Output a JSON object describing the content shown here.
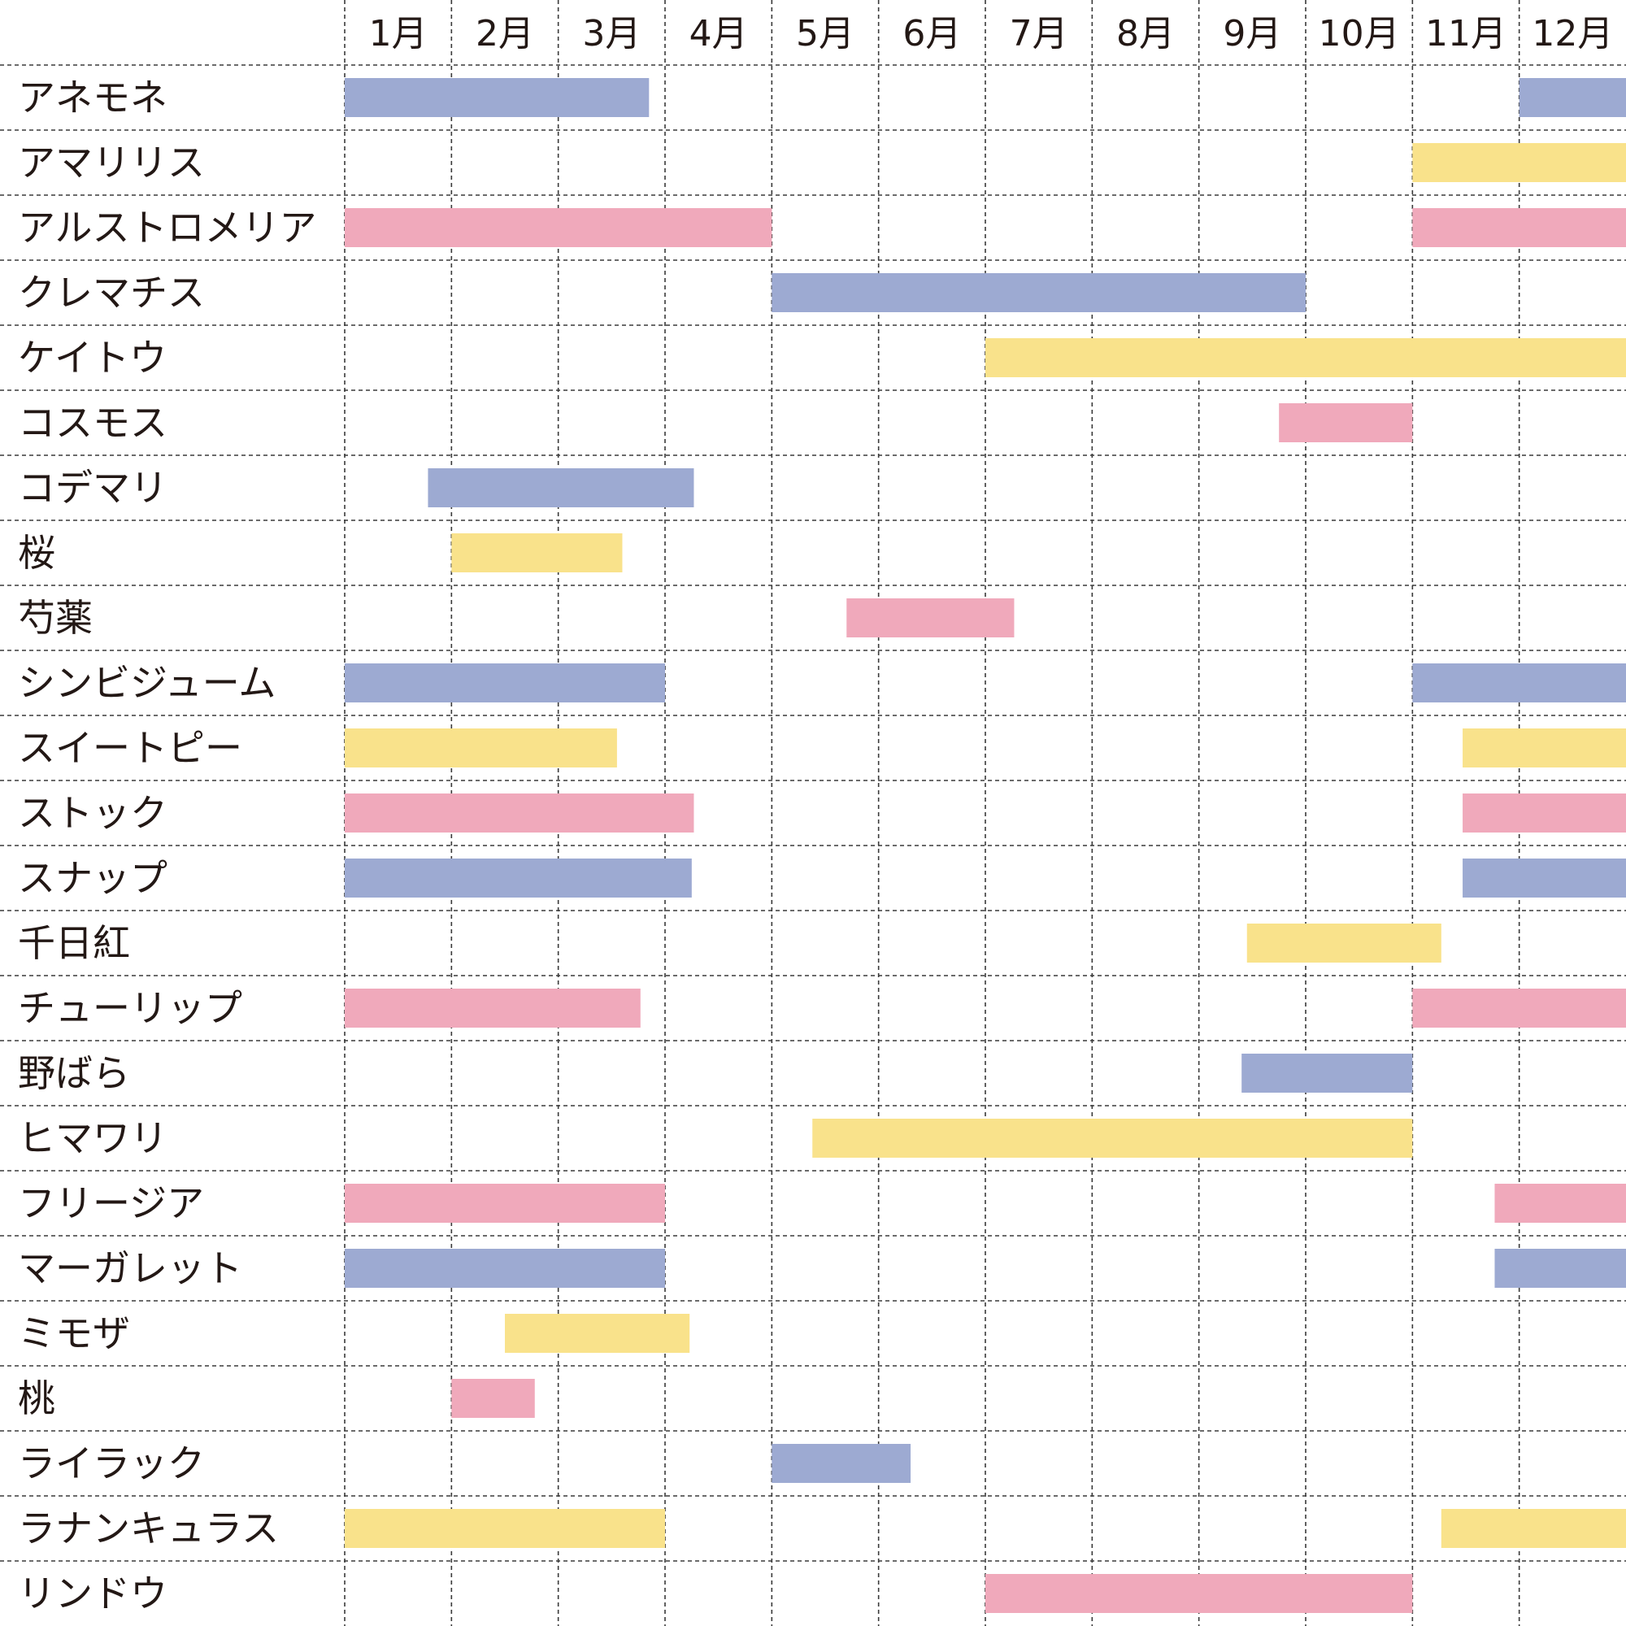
{
  "chart_data": {
    "type": "gantt",
    "title": "",
    "x": [
      "1月",
      "2月",
      "3月",
      "4月",
      "5月",
      "6月",
      "7月",
      "8月",
      "9月",
      "10月",
      "11月",
      "12月"
    ],
    "xlim": [
      0,
      12
    ],
    "colors": {
      "blue": "#9daad2",
      "yellow": "#f9e28b",
      "pink": "#f0a9bb"
    },
    "rows": [
      {
        "label": "アネモネ",
        "ranges": [
          {
            "start": 0,
            "end": 2.85,
            "color": "blue"
          },
          {
            "start": 11,
            "end": 12,
            "color": "blue"
          }
        ]
      },
      {
        "label": "アマリリス",
        "ranges": [
          {
            "start": 10,
            "end": 12,
            "color": "yellow"
          }
        ]
      },
      {
        "label": "アルストロメリア",
        "ranges": [
          {
            "start": 0,
            "end": 4,
            "color": "pink"
          },
          {
            "start": 10,
            "end": 12,
            "color": "pink"
          }
        ]
      },
      {
        "label": "クレマチス",
        "ranges": [
          {
            "start": 4,
            "end": 9,
            "color": "blue"
          }
        ]
      },
      {
        "label": "ケイトウ",
        "ranges": [
          {
            "start": 6,
            "end": 12,
            "color": "yellow"
          }
        ]
      },
      {
        "label": "コスモス",
        "ranges": [
          {
            "start": 8.75,
            "end": 10,
            "color": "pink"
          }
        ]
      },
      {
        "label": "コデマリ",
        "ranges": [
          {
            "start": 0.78,
            "end": 3.27,
            "color": "blue"
          }
        ]
      },
      {
        "label": "桜",
        "ranges": [
          {
            "start": 1,
            "end": 2.6,
            "color": "yellow"
          }
        ]
      },
      {
        "label": "芍薬",
        "ranges": [
          {
            "start": 4.7,
            "end": 6.27,
            "color": "pink"
          }
        ]
      },
      {
        "label": "シンビジューム",
        "ranges": [
          {
            "start": 0,
            "end": 3,
            "color": "blue"
          },
          {
            "start": 10,
            "end": 12,
            "color": "blue"
          }
        ]
      },
      {
        "label": "スイートピー",
        "ranges": [
          {
            "start": 0,
            "end": 2.55,
            "color": "yellow"
          },
          {
            "start": 10.47,
            "end": 12,
            "color": "yellow"
          }
        ]
      },
      {
        "label": "ストック",
        "ranges": [
          {
            "start": 0,
            "end": 3.27,
            "color": "pink"
          },
          {
            "start": 10.47,
            "end": 12,
            "color": "pink"
          }
        ]
      },
      {
        "label": "スナップ",
        "ranges": [
          {
            "start": 0,
            "end": 3.25,
            "color": "blue"
          },
          {
            "start": 10.47,
            "end": 12,
            "color": "blue"
          }
        ]
      },
      {
        "label": "千日紅",
        "ranges": [
          {
            "start": 8.45,
            "end": 10.27,
            "color": "yellow"
          }
        ]
      },
      {
        "label": "チューリップ",
        "ranges": [
          {
            "start": 0,
            "end": 2.77,
            "color": "pink"
          },
          {
            "start": 10,
            "end": 12,
            "color": "pink"
          }
        ]
      },
      {
        "label": "野ばら",
        "ranges": [
          {
            "start": 8.4,
            "end": 10,
            "color": "blue"
          }
        ]
      },
      {
        "label": "ヒマワリ",
        "ranges": [
          {
            "start": 4.38,
            "end": 10,
            "color": "yellow"
          }
        ]
      },
      {
        "label": "フリージア",
        "ranges": [
          {
            "start": 0,
            "end": 3,
            "color": "pink"
          },
          {
            "start": 10.77,
            "end": 12,
            "color": "pink"
          }
        ]
      },
      {
        "label": "マーガレット",
        "ranges": [
          {
            "start": 0,
            "end": 3,
            "color": "blue"
          },
          {
            "start": 10.77,
            "end": 12,
            "color": "blue"
          }
        ]
      },
      {
        "label": "ミモザ",
        "ranges": [
          {
            "start": 1.5,
            "end": 3.23,
            "color": "yellow"
          }
        ]
      },
      {
        "label": "桃",
        "ranges": [
          {
            "start": 1,
            "end": 1.78,
            "color": "pink"
          }
        ]
      },
      {
        "label": "ライラック",
        "ranges": [
          {
            "start": 4,
            "end": 5.3,
            "color": "blue"
          }
        ]
      },
      {
        "label": "ラナンキュラス",
        "ranges": [
          {
            "start": 0,
            "end": 3,
            "color": "yellow"
          },
          {
            "start": 10.27,
            "end": 12,
            "color": "yellow"
          }
        ]
      },
      {
        "label": "リンドウ",
        "ranges": [
          {
            "start": 6,
            "end": 10,
            "color": "pink"
          }
        ]
      }
    ]
  }
}
